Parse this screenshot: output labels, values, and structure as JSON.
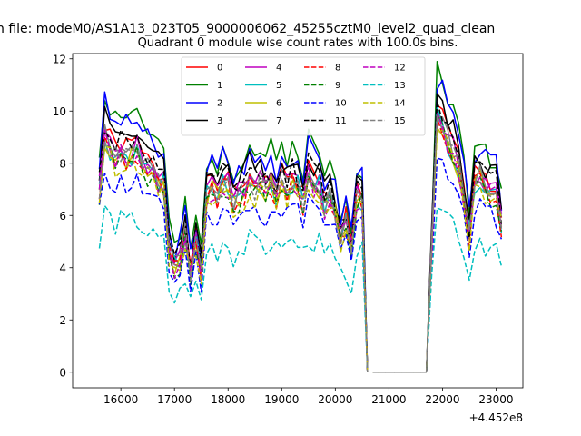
{
  "figure": {
    "suptitle": "n file: modeM0/AS1A13_023T05_9000006062_45255cztM0_level2_quad_clean",
    "title": "Quadrant 0 module wise count rates with 100.0s bins."
  },
  "chart_data": {
    "type": "line",
    "title": "Quadrant 0 module wise count rates with 100.0s bins.",
    "xlabel": "",
    "ylabel": "",
    "x_offset_label": "+4.452e8",
    "xlim": [
      15100,
      23500
    ],
    "ylim": [
      -0.6,
      12.2
    ],
    "xticks": [
      16000,
      17000,
      18000,
      19000,
      20000,
      21000,
      22000,
      23000
    ],
    "xtick_labels": [
      "16000",
      "17000",
      "18000",
      "19000",
      "20000",
      "21000",
      "22000",
      "23000"
    ],
    "yticks": [
      0,
      2,
      4,
      6,
      8,
      10,
      12
    ],
    "ytick_labels": [
      "0",
      "2",
      "4",
      "6",
      "8",
      "10",
      "12"
    ],
    "grid": false,
    "legend_position": "top-center",
    "legend_columns": 4,
    "segments": [
      {
        "x": [
          15600,
          15700,
          15800,
          15900,
          16000,
          16100,
          16200,
          16300,
          16400,
          16500,
          16600,
          16700,
          16800,
          16900,
          17000,
          17100,
          17200,
          17300,
          17400,
          17500,
          17600,
          17700,
          17800,
          17900,
          18000,
          18100,
          18200,
          18300,
          18400,
          18500,
          18600,
          18700,
          18800,
          18900,
          19000,
          19100,
          19200,
          19300,
          19400,
          19500,
          19600,
          19700,
          19800,
          19900,
          20000,
          20100,
          20200,
          20300,
          20400,
          20500,
          20600
        ],
        "anchor": [
          7.3,
          9.4,
          8.9,
          8.6,
          8.8,
          8.6,
          8.7,
          8.8,
          8.4,
          8.1,
          7.8,
          7.6,
          7.5,
          4.8,
          4.2,
          4.5,
          5.6,
          4.0,
          5.2,
          4.1,
          7.1,
          7.3,
          7.0,
          7.6,
          7.4,
          6.7,
          7.0,
          7.2,
          7.6,
          7.3,
          7.5,
          7.2,
          7.5,
          7.0,
          7.6,
          7.3,
          7.6,
          7.4,
          6.8,
          7.9,
          7.5,
          7.4,
          6.6,
          7.0,
          6.4,
          5.4,
          6.0,
          5.0,
          7.0,
          6.9,
          0
        ]
      },
      {
        "x": [
          20700,
          20800,
          20900,
          21000,
          21100,
          21200,
          21300,
          21400,
          21500,
          21600,
          21700
        ],
        "anchor": [
          0,
          0,
          0,
          0,
          0,
          0,
          0,
          0,
          0,
          0,
          0
        ]
      },
      {
        "x": [
          21700,
          21800,
          21900,
          22000,
          22100,
          22200,
          22300,
          22400,
          22500,
          22600,
          22700,
          22800,
          22900,
          23000,
          23100
        ],
        "anchor": [
          0,
          5.0,
          10.2,
          9.8,
          9.2,
          8.8,
          8.2,
          7.0,
          5.4,
          7.6,
          7.8,
          7.4,
          7.2,
          7.2,
          5.9
        ]
      }
    ],
    "series": [
      {
        "name": "0",
        "color": "#ff0000",
        "dash": false,
        "factor": 1.0,
        "seed": 1
      },
      {
        "name": "1",
        "color": "#008000",
        "dash": false,
        "factor": 1.14,
        "seed": 2
      },
      {
        "name": "2",
        "color": "#0000ff",
        "dash": false,
        "factor": 1.1,
        "seed": 3
      },
      {
        "name": "3",
        "color": "#000000",
        "dash": false,
        "factor": 1.06,
        "seed": 4
      },
      {
        "name": "4",
        "color": "#bf00bf",
        "dash": false,
        "factor": 0.98,
        "seed": 5
      },
      {
        "name": "5",
        "color": "#00bfbf",
        "dash": false,
        "factor": 0.96,
        "seed": 6
      },
      {
        "name": "6",
        "color": "#bfbf00",
        "dash": false,
        "factor": 0.95,
        "seed": 7
      },
      {
        "name": "7",
        "color": "#808080",
        "dash": false,
        "factor": 0.97,
        "seed": 8
      },
      {
        "name": "8",
        "color": "#ff0000",
        "dash": true,
        "factor": 0.94,
        "seed": 9
      },
      {
        "name": "9",
        "color": "#008000",
        "dash": true,
        "factor": 0.93,
        "seed": 10
      },
      {
        "name": "10",
        "color": "#0000ff",
        "dash": true,
        "factor": 0.83,
        "seed": 11
      },
      {
        "name": "11",
        "color": "#000000",
        "dash": true,
        "factor": 1.02,
        "seed": 12
      },
      {
        "name": "12",
        "color": "#bf00bf",
        "dash": true,
        "factor": 0.95,
        "seed": 13
      },
      {
        "name": "13",
        "color": "#00bfbf",
        "dash": true,
        "factor": 0.66,
        "seed": 14
      },
      {
        "name": "14",
        "color": "#bfbf00",
        "dash": true,
        "factor": 0.92,
        "seed": 15
      },
      {
        "name": "15",
        "color": "#808080",
        "dash": true,
        "factor": 0.96,
        "seed": 16
      }
    ]
  }
}
